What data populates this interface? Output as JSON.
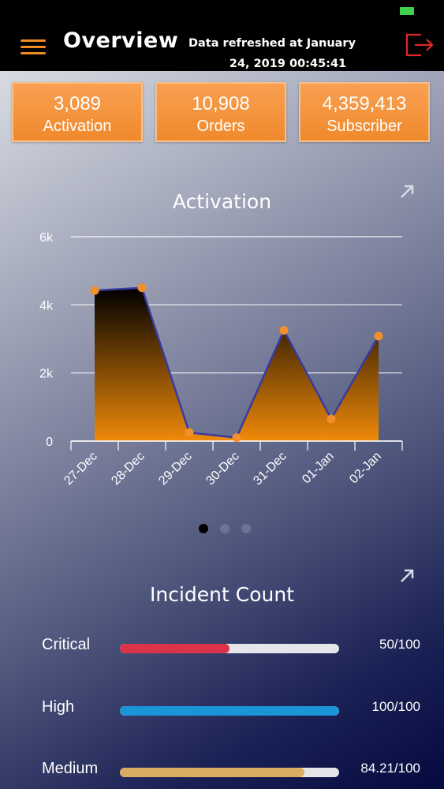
{
  "header": {
    "title": "Overview",
    "refresh_line1": "Data refreshed at January",
    "refresh_line2": "24, 2019 00:45:41"
  },
  "stats": [
    {
      "value": "3,089",
      "label": "Activation"
    },
    {
      "value": "10,908",
      "label": "Orders"
    },
    {
      "value": "4,359,413",
      "label": "Subscriber"
    }
  ],
  "chart_data": {
    "type": "area",
    "title": "Activation",
    "categories": [
      "27-Dec",
      "28-Dec",
      "29-Dec",
      "30-Dec",
      "31-Dec",
      "01-Jan",
      "02-Jan"
    ],
    "values": [
      4420,
      4500,
      250,
      100,
      3250,
      650,
      3080
    ],
    "yticks": [
      "0",
      "2k",
      "4k",
      "6k"
    ],
    "ylim": [
      0,
      6000
    ],
    "grid": true,
    "colors": {
      "area_top": "#000000",
      "area_bottom": "#f08a0a",
      "line": "#3a3aa0",
      "marker": "#f0902a"
    }
  },
  "carousel": {
    "count": 3,
    "active": 0
  },
  "incidents": {
    "title": "Incident Count",
    "items": [
      {
        "label": "Critical",
        "value_text": "50/100",
        "fraction": 0.5,
        "color": "#d9344a"
      },
      {
        "label": "High",
        "value_text": "100/100",
        "fraction": 1.0,
        "color": "#1a95d8"
      },
      {
        "label": "Medium",
        "value_text": "84.21/100",
        "fraction": 0.8421,
        "color": "#d9ad62"
      }
    ]
  },
  "icons": {
    "menu": "hamburger-icon",
    "logout": "logout-icon",
    "expand": "expand-arrow-icon"
  }
}
